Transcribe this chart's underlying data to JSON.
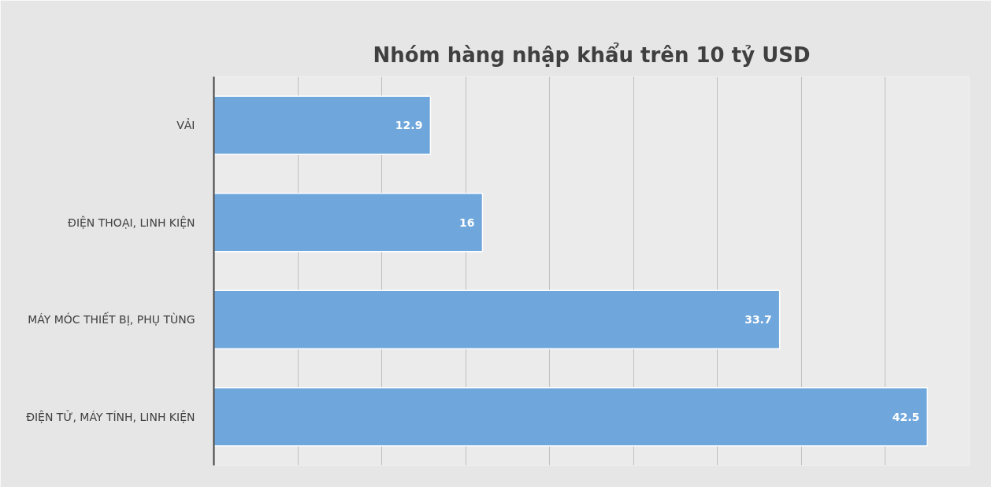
{
  "chart_data": {
    "type": "bar",
    "orientation": "horizontal",
    "title": "Nhóm hàng nhập khẩu trên 10 tỷ USD",
    "categories": [
      "VẢI",
      "ĐIỆN THOẠI, LINH KIỆN",
      "MÁY MÓC THIẾT BỊ, PHỤ TÙNG",
      "ĐIỆN TỬ, MÁY TÍNH, LINH KIỆN"
    ],
    "values": [
      12.9,
      16,
      33.7,
      42.5
    ],
    "color": "#6fa6db",
    "xlim": [
      0,
      45
    ],
    "xticks": [
      {
        "value": 0,
        "label": null
      },
      {
        "value": 5,
        "label": null
      },
      {
        "value": 10,
        "label": null
      },
      {
        "value": 15,
        "label": null
      },
      {
        "value": 20,
        "label": null
      },
      {
        "value": 25,
        "label": null
      },
      {
        "value": 30,
        "label": null
      },
      {
        "value": 35,
        "label": null
      },
      {
        "value": 40,
        "label": null
      },
      {
        "value": 45,
        "label": null
      }
    ],
    "grid": "x",
    "tick_labels": "y",
    "data_labels": true
  }
}
